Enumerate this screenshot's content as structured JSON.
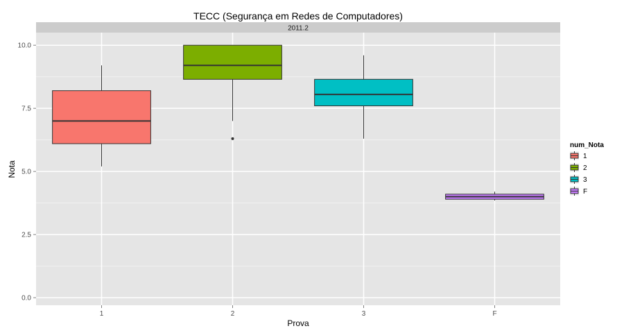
{
  "chart_data": {
    "type": "boxplot",
    "title": "TECC (Segurança em Redes de Computadores)",
    "facet_label": "2011.2",
    "xlabel": "Prova",
    "ylabel": "Nota",
    "ylim": [
      -0.3,
      10.5
    ],
    "yticks": [
      0.0,
      2.5,
      5.0,
      7.5,
      10.0
    ],
    "ytick_labels": [
      "0.0",
      "2.5",
      "5.0",
      "7.5",
      "10.0"
    ],
    "categories": [
      "1",
      "2",
      "3",
      "F"
    ],
    "boxes": [
      {
        "category": "1",
        "whisker_low": 5.2,
        "q1": 6.1,
        "median": 7.0,
        "q3": 8.2,
        "whisker_high": 9.2,
        "outliers": [],
        "color": "#F8766D"
      },
      {
        "category": "2",
        "whisker_low": 7.0,
        "q1": 8.65,
        "median": 9.2,
        "q3": 10.0,
        "whisker_high": 10.0,
        "outliers": [
          6.3
        ],
        "color": "#7CAE00"
      },
      {
        "category": "3",
        "whisker_low": 6.3,
        "q1": 7.6,
        "median": 8.05,
        "q3": 8.65,
        "whisker_high": 9.6,
        "outliers": [],
        "color": "#00BFC4"
      },
      {
        "category": "F",
        "whisker_low": 3.85,
        "q1": 3.9,
        "median": 4.0,
        "q3": 4.1,
        "whisker_high": 4.2,
        "outliers": [],
        "color": "#C77CFF"
      }
    ],
    "grid": true,
    "legend": {
      "title": "num_Nota",
      "position": "right",
      "entries": [
        {
          "label": "1",
          "color": "#F8766D"
        },
        {
          "label": "2",
          "color": "#7CAE00"
        },
        {
          "label": "3",
          "color": "#00BFC4"
        },
        {
          "label": "F",
          "color": "#C77CFF"
        }
      ]
    },
    "colors": {
      "panel_bg": "#E5E5E5",
      "grid": "#FFFFFF",
      "strip_bg": "#CCCCCC"
    }
  }
}
